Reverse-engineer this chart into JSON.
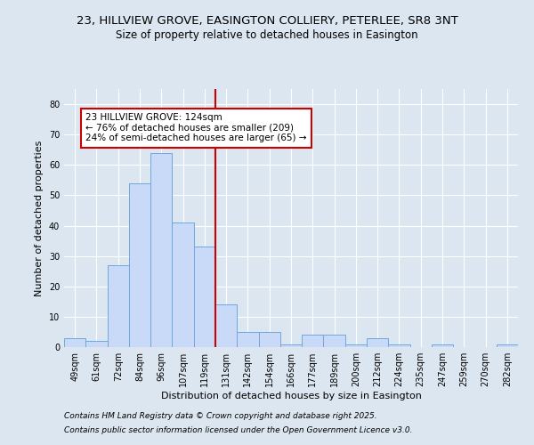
{
  "title_line1": "23, HILLVIEW GROVE, EASINGTON COLLIERY, PETERLEE, SR8 3NT",
  "title_line2": "Size of property relative to detached houses in Easington",
  "xlabel": "Distribution of detached houses by size in Easington",
  "ylabel": "Number of detached properties",
  "categories": [
    "49sqm",
    "61sqm",
    "72sqm",
    "84sqm",
    "96sqm",
    "107sqm",
    "119sqm",
    "131sqm",
    "142sqm",
    "154sqm",
    "166sqm",
    "177sqm",
    "189sqm",
    "200sqm",
    "212sqm",
    "224sqm",
    "235sqm",
    "247sqm",
    "259sqm",
    "270sqm",
    "282sqm"
  ],
  "values": [
    3,
    2,
    27,
    54,
    64,
    41,
    33,
    14,
    5,
    5,
    1,
    4,
    4,
    1,
    3,
    1,
    0,
    1,
    0,
    0,
    1
  ],
  "bar_color": "#c9daf8",
  "bar_edge_color": "#6fa8dc",
  "vline_color": "#cc0000",
  "annotation_text": "23 HILLVIEW GROVE: 124sqm\n← 76% of detached houses are smaller (209)\n24% of semi-detached houses are larger (65) →",
  "annotation_box_color": "#ffffff",
  "annotation_box_edge": "#cc0000",
  "ylim": [
    0,
    85
  ],
  "yticks": [
    0,
    10,
    20,
    30,
    40,
    50,
    60,
    70,
    80
  ],
  "background_color": "#dce6f1",
  "plot_background": "#dce6f1",
  "footer_line1": "Contains HM Land Registry data © Crown copyright and database right 2025.",
  "footer_line2": "Contains public sector information licensed under the Open Government Licence v3.0.",
  "title_fontsize": 9.5,
  "subtitle_fontsize": 8.5,
  "axis_label_fontsize": 8,
  "tick_fontsize": 7,
  "annotation_fontsize": 7.5,
  "footer_fontsize": 6.5,
  "vline_pos": 6.5
}
